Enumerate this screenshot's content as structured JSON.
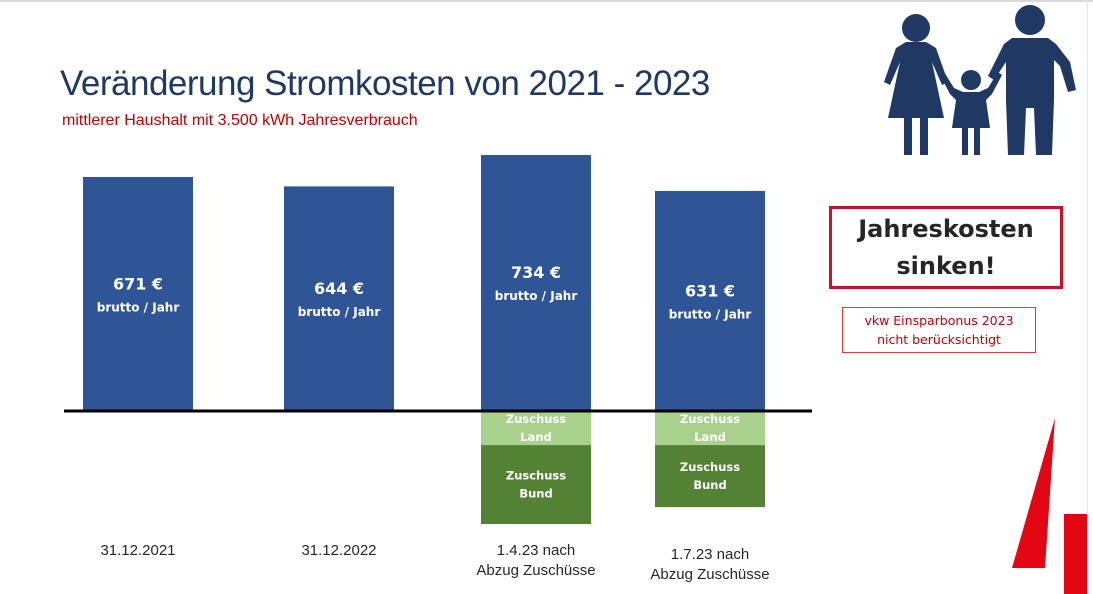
{
  "title": "Veränderung Stromkosten von 2021 - 2023",
  "subtitle": "mittlerer Haushalt mit 3.500 kWh Jahresverbrauch",
  "callout": {
    "text": "Jahreskosten\nsinken!"
  },
  "note": {
    "text": "vkw Einsparbonus 2023\nnicht berücksichtigt"
  },
  "icons": {
    "family": "family-icon",
    "decoration": "red-logo-shape"
  },
  "colors": {
    "bar": "#2f5597",
    "zuschuss_land": "#a9d18e",
    "zuschuss_bund": "#548235",
    "title": "#1f3864",
    "accent": "#c00000"
  },
  "chart_data": {
    "type": "bar",
    "unit": "€",
    "value_sublabel": "brutto / Jahr",
    "categories": [
      "31.12.2021",
      "31.12.2022",
      "1.4.23 nach\nAbzug Zuschüsse",
      "1.7.23 nach\nAbzug Zuschüsse"
    ],
    "values": [
      671,
      644,
      734,
      631
    ],
    "value_labels": [
      "671 €",
      "644 €",
      "734 €",
      "631 €"
    ],
    "ylim": [
      -330,
      734
    ],
    "stacked_below_zero": [
      {
        "name": "Zuschuss Land",
        "values": [
          0,
          0,
          95,
          95
        ]
      },
      {
        "name": "Zuschuss Bund",
        "values": [
          0,
          0,
          220,
          173
        ]
      }
    ],
    "grid": false
  }
}
